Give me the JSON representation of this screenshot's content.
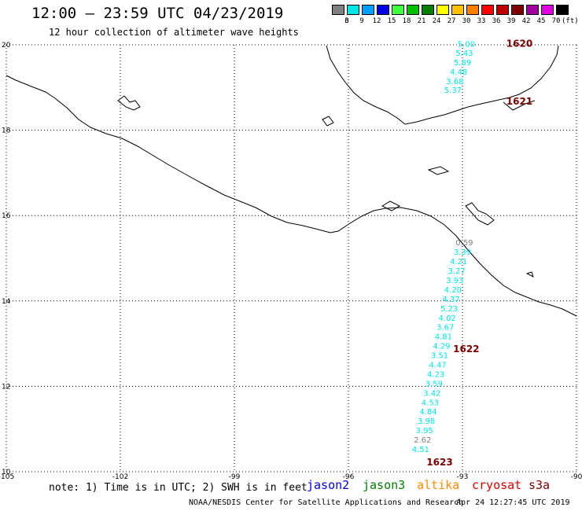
{
  "header": {
    "title": "12:00 — 23:59 UTC 04/23/2019",
    "subtitle": "12 hour collection of altimeter wave heights"
  },
  "legend": {
    "unit": "(ft)",
    "bins": [
      {
        "label": "3",
        "color": "#808080"
      },
      {
        "label": "6",
        "color": "#00e5e5"
      },
      {
        "label": "9",
        "color": "#00a0ff"
      },
      {
        "label": "12",
        "color": "#0000e0"
      },
      {
        "label": "15",
        "color": "#40ff40"
      },
      {
        "label": "18",
        "color": "#00c000"
      },
      {
        "label": "21",
        "color": "#008000"
      },
      {
        "label": "24",
        "color": "#ffff00"
      },
      {
        "label": "27",
        "color": "#ffc000"
      },
      {
        "label": "30",
        "color": "#ff8000"
      },
      {
        "label": "33",
        "color": "#ff0000"
      },
      {
        "label": "36",
        "color": "#c00000"
      },
      {
        "label": "39",
        "color": "#800000"
      },
      {
        "label": "42",
        "color": "#a000a0"
      },
      {
        "label": "45",
        "color": "#e000e0"
      },
      {
        "label": "70",
        "color": "#000000"
      }
    ]
  },
  "axes": {
    "lon_ticks": [
      "-105",
      "-102",
      "-99",
      "-96",
      "-93",
      "-90"
    ],
    "lat_ticks": [
      "10",
      "12",
      "14",
      "16",
      "18",
      "20"
    ],
    "lon_range": [
      -105,
      -90
    ],
    "lat_range": [
      10,
      20
    ],
    "grid": "dotted"
  },
  "tracks": [
    {
      "pass": "1620",
      "lon": -91.5,
      "lat": 19.95
    },
    {
      "pass": "1621",
      "lon": -91.5,
      "lat": 18.6
    },
    {
      "pass": "1622",
      "lon": -92.9,
      "lat": 12.8
    },
    {
      "pass": "1623",
      "lon": -93.6,
      "lat": 10.15
    }
  ],
  "wave_heights": [
    {
      "value": "5.00",
      "lon": -92.9,
      "lat": 19.95,
      "color": "#00e5e5"
    },
    {
      "value": "5.43",
      "lon": -92.95,
      "lat": 19.74,
      "color": "#00e5e5"
    },
    {
      "value": "5.89",
      "lon": -93.0,
      "lat": 19.52,
      "color": "#00e5e5"
    },
    {
      "value": "4.48",
      "lon": -93.1,
      "lat": 19.3,
      "color": "#00e5e5"
    },
    {
      "value": "3.68",
      "lon": -93.2,
      "lat": 19.08,
      "color": "#00e5e5"
    },
    {
      "value": "5.37",
      "lon": -93.25,
      "lat": 18.88,
      "color": "#00e5e5"
    },
    {
      "value": "0.59",
      "lon": -92.95,
      "lat": 15.3,
      "color": "#808080"
    },
    {
      "value": "3.39",
      "lon": -93.0,
      "lat": 15.08,
      "color": "#00e5e5"
    },
    {
      "value": "4.21",
      "lon": -93.1,
      "lat": 14.86,
      "color": "#00e5e5"
    },
    {
      "value": "3.27",
      "lon": -93.15,
      "lat": 14.64,
      "color": "#00e5e5"
    },
    {
      "value": "3.93",
      "lon": -93.2,
      "lat": 14.42,
      "color": "#00e5e5"
    },
    {
      "value": "4.20",
      "lon": -93.25,
      "lat": 14.2,
      "color": "#00e5e5"
    },
    {
      "value": "4.37",
      "lon": -93.3,
      "lat": 13.98,
      "color": "#00e5e5"
    },
    {
      "value": "5.23",
      "lon": -93.35,
      "lat": 13.76,
      "color": "#00e5e5"
    },
    {
      "value": "4.02",
      "lon": -93.4,
      "lat": 13.54,
      "color": "#00e5e5"
    },
    {
      "value": "3.67",
      "lon": -93.45,
      "lat": 13.32,
      "color": "#00e5e5"
    },
    {
      "value": "4.81",
      "lon": -93.5,
      "lat": 13.1,
      "color": "#00e5e5"
    },
    {
      "value": "4.29",
      "lon": -93.55,
      "lat": 12.88,
      "color": "#00e5e5"
    },
    {
      "value": "3.51",
      "lon": -93.6,
      "lat": 12.66,
      "color": "#00e5e5"
    },
    {
      "value": "4.47",
      "lon": -93.65,
      "lat": 12.44,
      "color": "#00e5e5"
    },
    {
      "value": "4.23",
      "lon": -93.7,
      "lat": 12.22,
      "color": "#00e5e5"
    },
    {
      "value": "3.59",
      "lon": -93.75,
      "lat": 12.0,
      "color": "#00e5e5"
    },
    {
      "value": "3.42",
      "lon": -93.8,
      "lat": 11.78,
      "color": "#00e5e5"
    },
    {
      "value": "4.53",
      "lon": -93.85,
      "lat": 11.56,
      "color": "#00e5e5"
    },
    {
      "value": "4.84",
      "lon": -93.9,
      "lat": 11.34,
      "color": "#00e5e5"
    },
    {
      "value": "3.98",
      "lon": -93.95,
      "lat": 11.12,
      "color": "#00e5e5"
    },
    {
      "value": "3.95",
      "lon": -94.0,
      "lat": 10.9,
      "color": "#00e5e5"
    },
    {
      "value": "2.62",
      "lon": -94.05,
      "lat": 10.68,
      "color": "#808080"
    },
    {
      "value": "4.51",
      "lon": -94.1,
      "lat": 10.46,
      "color": "#00e5e5"
    }
  ],
  "footer": {
    "note": "note: 1) Time is in UTC; 2) SWH is in feet",
    "satellites": [
      {
        "name": "jason2",
        "color": "#0000e0"
      },
      {
        "name": "jason3",
        "color": "#008000"
      },
      {
        "name": "altika",
        "color": "#ff8c00"
      },
      {
        "name": "cryosat",
        "color": "#e00000"
      },
      {
        "name": "s3a",
        "color": "#7a0000"
      }
    ],
    "credit": "NOAA/NESDIS Center for Satellite Applications and Research",
    "timestamp": "Apr 24 12:27:45 UTC 2019"
  }
}
